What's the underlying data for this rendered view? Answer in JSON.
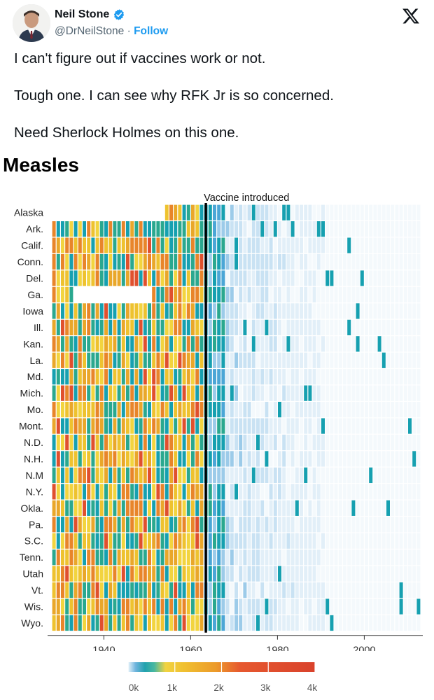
{
  "tweet": {
    "display_name": "Neil Stone",
    "handle": "@DrNeilStone",
    "separator": "·",
    "follow_label": "Follow",
    "verified_icon": "verified-badge-icon",
    "platform_icon": "x-logo-icon",
    "text_lines": [
      "I can't figure out if vaccines work or not.",
      "Tough one. I can see why RFK Jr is so concerned.",
      "Need Sherlock Holmes on this one."
    ],
    "accent_color": "#1d9bf0"
  },
  "chart_data": {
    "type": "heatmap",
    "title": "Measles",
    "annotation": "Vaccine introduced",
    "annotation_x": 1963,
    "x_range": [
      1928,
      2012
    ],
    "x_ticks": [
      1940,
      1960,
      1980,
      2000
    ],
    "x_tick_labels": [
      "1940",
      "1960",
      "1980",
      "2000"
    ],
    "rows": [
      "Alaska",
      "Ark.",
      "Calif.",
      "Conn.",
      "Del.",
      "Ga.",
      "Iowa",
      "Ill.",
      "Kan.",
      "La.",
      "Md.",
      "Mich.",
      "Mo.",
      "Mont.",
      "N.D.",
      "N.H.",
      "N.M",
      "N.Y.",
      "Okla.",
      "Pa.",
      "S.C.",
      "Tenn.",
      "Utah",
      "Vt.",
      "Wis.",
      "Wyo."
    ],
    "colorbar": {
      "ticks": [
        0,
        1000,
        2000,
        3000,
        4000
      ],
      "tick_labels": [
        "0k",
        "1k",
        "2k",
        "3k",
        "4k"
      ],
      "colors": [
        "#e8f4fa",
        "#6fb4dd",
        "#21a1ae",
        "#48b8a0",
        "#f1d341",
        "#f0c030",
        "#ec9a2a",
        "#e6582f",
        "#d9422c"
      ]
    },
    "cell_values_note": "Cases per 100,000 by state and year, 1928-2012: high (0.4k-4k) before 1963, near 0 after."
  }
}
